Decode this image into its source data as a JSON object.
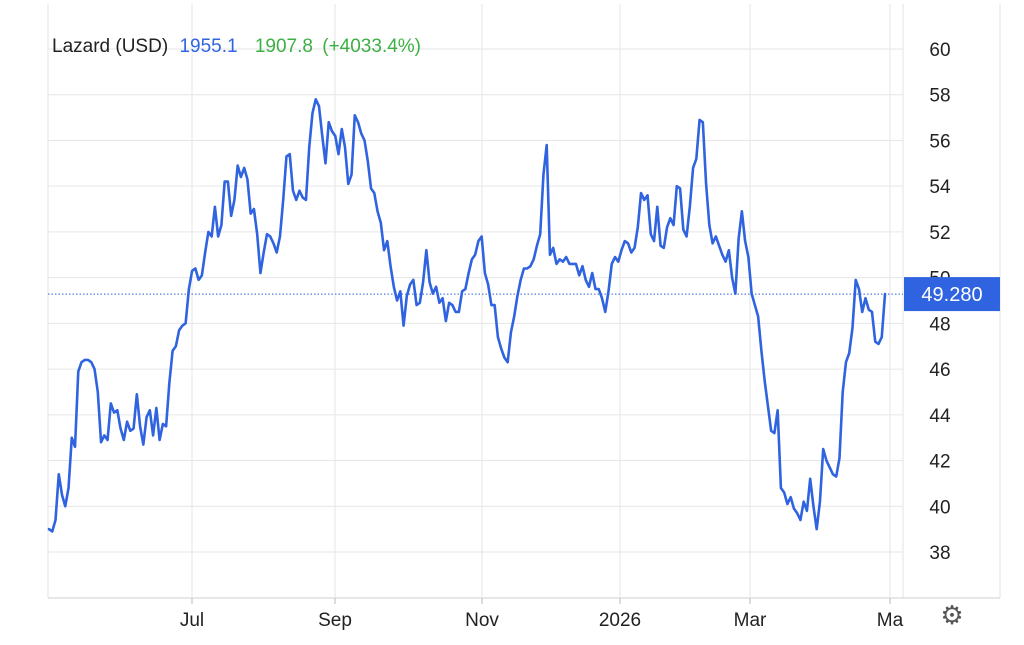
{
  "legend": {
    "name": "Lazard (USD)",
    "value1": "1955.1",
    "value2": "1907.8",
    "change": "(+4033.4%)"
  },
  "current_price_label": "49.280",
  "icons": {
    "settings": "gear-icon"
  },
  "colors": {
    "line": "#2f63e0",
    "value1": "#2f63e0",
    "value2": "#3cb043",
    "badge_bg": "#2f63e0",
    "grid": "#e6e6e6",
    "text": "#222222"
  },
  "chart_data": {
    "type": "line",
    "title": "",
    "xlabel": "",
    "ylabel": "",
    "ylim": [
      36,
      61
    ],
    "y_ticks": [
      "38",
      "40",
      "42",
      "44",
      "46",
      "48",
      "50",
      "52",
      "54",
      "56",
      "58",
      "60"
    ],
    "x_ticks": [
      "Jul",
      "Sep",
      "Nov",
      "2026",
      "Mar",
      "Ma"
    ],
    "current_value": 49.28,
    "grid": true,
    "y_axis_side": "right",
    "series": [
      {
        "values": [
          39.0,
          38.9,
          39.4,
          41.4,
          40.5,
          40.0,
          40.8,
          43.0,
          42.6,
          45.9,
          46.3,
          46.4,
          46.4,
          46.3,
          46.0,
          45.0,
          42.8,
          43.1,
          42.9,
          44.5,
          44.1,
          44.2,
          43.4,
          42.9,
          43.7,
          43.3,
          43.4,
          44.9,
          43.5,
          42.7,
          43.9,
          44.2,
          43.1,
          44.3,
          42.9,
          43.6,
          43.5,
          45.4,
          46.8,
          47.0,
          47.7,
          47.9,
          48.0,
          49.5,
          50.3,
          50.4,
          49.9,
          50.1,
          51.1,
          52.0,
          51.8,
          53.1,
          51.8,
          52.3,
          54.2,
          54.2,
          52.7,
          53.4,
          54.9,
          54.4,
          54.8,
          54.3,
          52.8,
          53.0,
          51.9,
          50.2,
          51.1,
          51.9,
          51.8,
          51.5,
          51.1,
          51.8,
          53.4,
          55.3,
          55.4,
          53.8,
          53.4,
          53.8,
          53.5,
          53.4,
          55.7,
          57.2,
          57.8,
          57.5,
          56.2,
          55.0,
          56.8,
          56.4,
          56.2,
          55.4,
          56.5,
          55.7,
          54.1,
          54.5,
          57.1,
          56.8,
          56.3,
          56.0,
          55.1,
          53.9,
          53.7,
          52.9,
          52.4,
          51.2,
          51.6,
          50.5,
          49.6,
          49.0,
          49.4,
          47.9,
          49.2,
          49.7,
          49.9,
          48.8,
          48.9,
          49.8,
          51.2,
          49.8,
          49.3,
          49.6,
          48.9,
          49.1,
          48.1,
          48.9,
          48.8,
          48.5,
          48.5,
          49.4,
          49.5,
          50.2,
          50.8,
          51.0,
          51.6,
          51.8,
          50.2,
          49.7,
          48.8,
          48.8,
          47.4,
          46.9,
          46.5,
          46.3,
          47.6,
          48.3,
          49.2,
          49.9,
          50.4,
          50.4,
          50.5,
          50.8,
          51.4,
          51.9,
          54.5,
          55.8,
          51.0,
          51.3,
          50.6,
          50.8,
          50.7,
          50.9,
          50.6,
          50.6,
          50.6,
          50.1,
          50.5,
          49.9,
          49.6,
          50.2,
          49.5,
          49.5,
          49.1,
          48.5,
          49.4,
          50.6,
          50.9,
          50.7,
          51.2,
          51.6,
          51.5,
          51.1,
          51.3,
          52.2,
          53.7,
          53.4,
          53.6,
          51.9,
          51.6,
          53.1,
          51.4,
          51.3,
          52.2,
          52.6,
          52.3,
          54.0,
          53.9,
          52.1,
          51.8,
          53.1,
          54.8,
          55.2,
          56.9,
          56.8,
          54.1,
          52.3,
          51.5,
          51.8,
          51.4,
          51.0,
          50.7,
          51.2,
          50.0,
          49.3,
          51.7,
          52.9,
          51.6,
          50.9,
          49.3,
          48.8,
          48.3,
          46.8,
          45.5,
          44.4,
          43.3,
          43.2,
          44.2,
          40.8,
          40.6,
          40.1,
          40.4,
          39.9,
          39.7,
          39.4,
          40.2,
          39.8,
          41.2,
          40.0,
          39.0,
          40.2,
          42.5,
          42.0,
          41.7,
          41.4,
          41.3,
          42.1,
          45.0,
          46.3,
          46.7,
          47.8,
          49.9,
          49.5,
          48.5,
          49.1,
          48.6,
          48.5,
          47.2,
          47.1,
          47.4,
          49.28
        ]
      }
    ]
  }
}
